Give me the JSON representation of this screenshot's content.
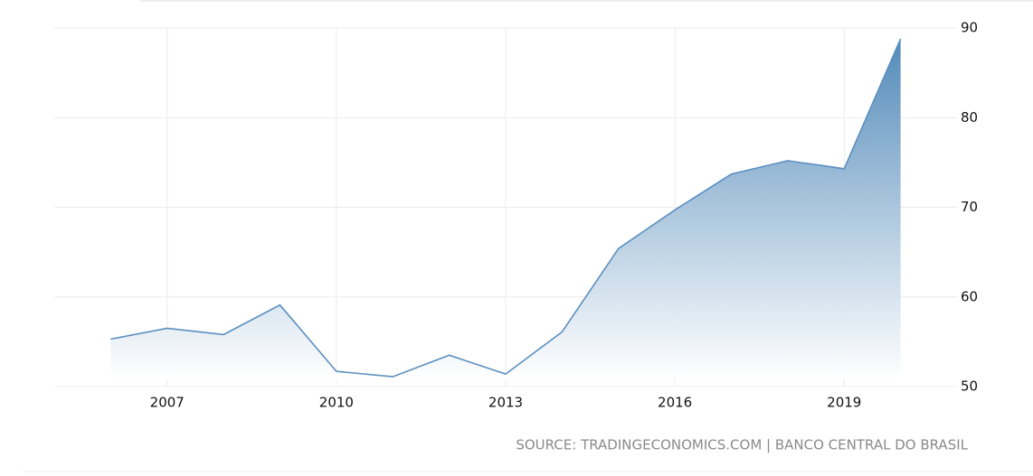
{
  "chart_data": {
    "type": "area",
    "x": [
      2006,
      2007,
      2008,
      2009,
      2010,
      2011,
      2012,
      2013,
      2014,
      2015,
      2016,
      2017,
      2018,
      2019,
      2020
    ],
    "values": [
      55.3,
      56.5,
      55.8,
      59.1,
      51.7,
      51.1,
      53.5,
      51.4,
      56.1,
      65.4,
      69.7,
      73.7,
      75.2,
      74.3,
      88.8
    ],
    "color": "#5b8fbf",
    "xlim": [
      2005,
      2021
    ],
    "xticks": [
      2007,
      2010,
      2013,
      2016,
      2019
    ],
    "ylim": [
      50,
      90
    ],
    "yticks": [
      50,
      60,
      70,
      80,
      90
    ],
    "grid": true,
    "source": "SOURCE: TRADINGECONOMICS.COM | BANCO CENTRAL DO BRASIL"
  }
}
